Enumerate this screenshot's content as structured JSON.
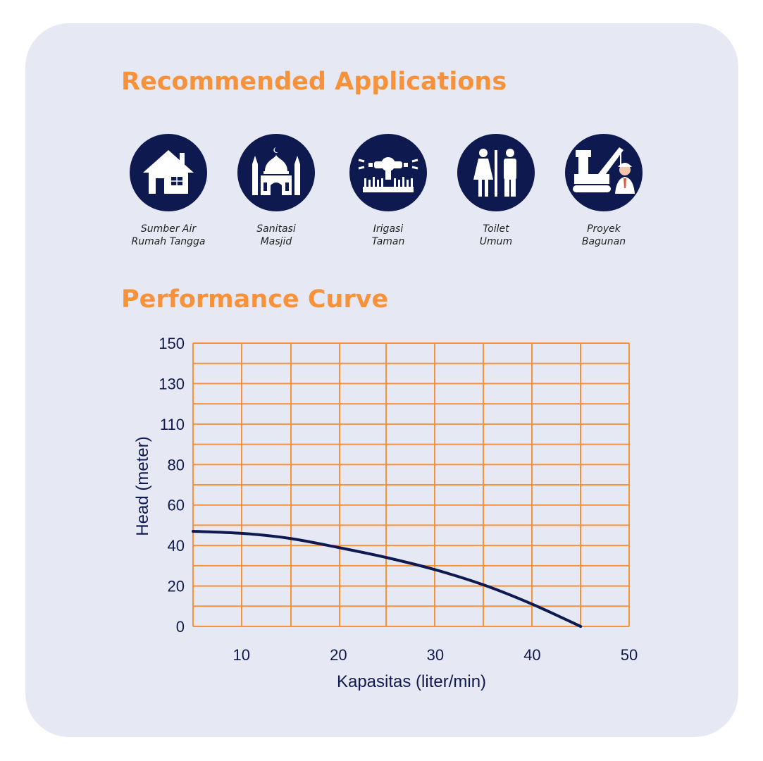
{
  "applications": {
    "title": "Recommended Applications",
    "items": [
      {
        "line1": "Sumber Air",
        "line2": "Rumah Tangga",
        "icon": "house-icon"
      },
      {
        "line1": "Sanitasi",
        "line2": "Masjid",
        "icon": "mosque-icon"
      },
      {
        "line1": "Irigasi",
        "line2": "Taman",
        "icon": "sprinkler-icon"
      },
      {
        "line1": "Toilet",
        "line2": "Umum",
        "icon": "restroom-icon"
      },
      {
        "line1": "Proyek",
        "line2": "Bagunan",
        "icon": "construction-icon"
      }
    ],
    "icon_bg_color": "#0e1a4f"
  },
  "performance": {
    "title": "Performance Curve"
  },
  "chart_data": {
    "type": "line",
    "xlabel": "Kapasitas (liter/min)",
    "ylabel": "Head (meter)",
    "xlim": [
      5,
      50
    ],
    "x_ticks": [
      "10",
      "20",
      "30",
      "40",
      "50"
    ],
    "x_tick_values": [
      10,
      20,
      30,
      40,
      50
    ],
    "y_tick_labels": [
      "0",
      "20",
      "40",
      "60",
      "80",
      "110",
      "130",
      "150"
    ],
    "series": [
      {
        "x": [
          5,
          10,
          15,
          20,
          25,
          30,
          35,
          40,
          45
        ],
        "y": [
          47,
          46,
          43.5,
          39,
          34,
          28,
          20.5,
          11,
          0
        ]
      }
    ],
    "grid": true,
    "grid_color": "#f7923a",
    "line_color": "#0e1a4f"
  }
}
